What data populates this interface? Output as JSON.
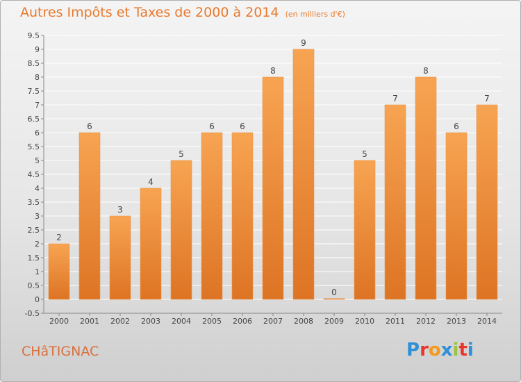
{
  "title": {
    "main": "Autres Impôts et Taxes de 2000 à 2014",
    "unit": "(en milliers d'€)"
  },
  "place_name": "CHâTIGNAC",
  "logo": {
    "text": "Proxiti",
    "letter_colors": [
      "#2d8fd6",
      "#e8362b",
      "#f29a1f",
      "#2d8fd6",
      "#9bc53d",
      "#e8362b",
      "#2d8fd6"
    ]
  },
  "colors": {
    "bar_top": "#f7a452",
    "bar_bottom": "#dd7424",
    "text": "#444444",
    "title": "#e87a2c",
    "grid": "#ffffff"
  },
  "chart_data": {
    "type": "bar",
    "categories": [
      "2000",
      "2001",
      "2002",
      "2003",
      "2004",
      "2005",
      "2006",
      "2007",
      "2008",
      "2009",
      "2010",
      "2011",
      "2012",
      "2013",
      "2014"
    ],
    "values": [
      2,
      6,
      3,
      4,
      5,
      6,
      6,
      8,
      9,
      0,
      5,
      7,
      8,
      6,
      7
    ],
    "data_labels": [
      "2",
      "6",
      "3",
      "4",
      "5",
      "6",
      "6",
      "8",
      "9",
      "0",
      "5",
      "7",
      "8",
      "6",
      "7"
    ],
    "y_ticks": [
      "-0.5",
      "0",
      "0.5",
      "1",
      "1.5",
      "2",
      "2.5",
      "3",
      "3.5",
      "4",
      "4.5",
      "5",
      "5.5",
      "6",
      "6.5",
      "7",
      "7.5",
      "8",
      "8.5",
      "9",
      "9.5"
    ],
    "ylim": [
      -0.5,
      9.5
    ],
    "grid": true,
    "legend": "none"
  }
}
